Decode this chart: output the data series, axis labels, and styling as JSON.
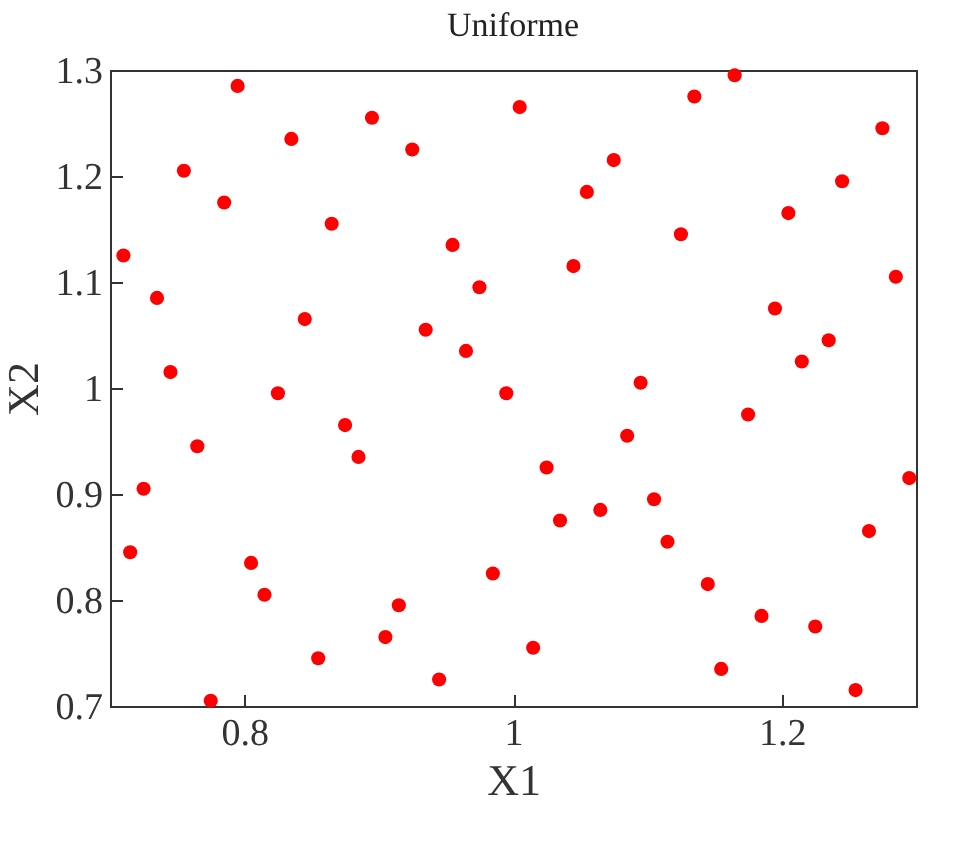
{
  "chart_data": {
    "type": "scatter",
    "title": "Uniforme",
    "xlabel": "X1",
    "ylabel": "X2",
    "marker": "circle",
    "grid": false,
    "xlim": [
      0.7,
      1.3
    ],
    "ylim": [
      0.7,
      1.3
    ],
    "xticks": [
      0.8,
      1,
      1.2
    ],
    "yticks": [
      0.7,
      0.8,
      0.9,
      1,
      1.1,
      1.2,
      1.3
    ],
    "series": [
      {
        "color": "#ff0000",
        "x": [
          0.71,
          0.715,
          0.725,
          0.735,
          0.745,
          0.755,
          0.765,
          0.775,
          0.785,
          0.795,
          0.805,
          0.815,
          0.825,
          0.835,
          0.845,
          0.855,
          0.865,
          0.875,
          0.885,
          0.895,
          0.905,
          0.915,
          0.925,
          0.935,
          0.945,
          0.955,
          0.965,
          0.975,
          0.985,
          0.995,
          1.005,
          1.015,
          1.025,
          1.035,
          1.045,
          1.055,
          1.065,
          1.075,
          1.085,
          1.095,
          1.105,
          1.115,
          1.125,
          1.135,
          1.145,
          1.155,
          1.165,
          1.175,
          1.185,
          1.195,
          1.205,
          1.215,
          1.225,
          1.235,
          1.245,
          1.255,
          1.265,
          1.275,
          1.285,
          1.295
        ],
        "values": [
          1.125,
          0.845,
          0.905,
          1.085,
          1.015,
          1.205,
          0.945,
          0.705,
          1.175,
          1.285,
          0.835,
          0.805,
          0.995,
          1.235,
          1.065,
          0.745,
          1.155,
          0.965,
          0.935,
          1.255,
          0.765,
          0.795,
          1.225,
          1.055,
          0.725,
          1.135,
          1.035,
          1.095,
          0.825,
          0.995,
          1.265,
          0.755,
          0.925,
          0.875,
          1.115,
          1.185,
          0.885,
          1.215,
          0.955,
          1.005,
          0.895,
          0.855,
          1.145,
          1.275,
          0.815,
          0.735,
          1.295,
          0.975,
          0.785,
          1.075,
          1.165,
          1.025,
          0.775,
          1.045,
          1.195,
          0.715,
          0.865,
          1.245,
          1.105,
          0.915
        ]
      }
    ]
  }
}
